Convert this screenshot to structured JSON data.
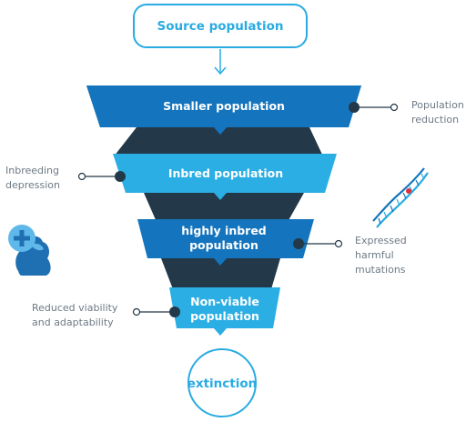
{
  "source_label": "Source population",
  "stages": [
    {
      "label": "Smaller population"
    },
    {
      "label": "Inbred population"
    },
    {
      "label_line1": "highly inbred",
      "label_line2": "population"
    },
    {
      "label_line1": "Non-viable",
      "label_line2": "population"
    }
  ],
  "extinction_label": "extinction",
  "annotations": {
    "population_reduction": {
      "line1": "Population",
      "line2": "reduction"
    },
    "inbreeding_depression": {
      "line1": "Inbreeding",
      "line2": "depression"
    },
    "expressed_harmful_mutations": {
      "line1": "Expressed",
      "line2": "harmful",
      "line3": "mutations"
    },
    "reduced_viability": {
      "line1": "Reduced viability",
      "line2": "and adaptability"
    }
  },
  "icons": [
    "dna-icon",
    "sick-dog-icon"
  ],
  "colors": {
    "dark_blue": "#1474bd",
    "light_blue": "#2aaee3",
    "connector_dark": "#233848",
    "outline": "#29abe2",
    "annotation_text": "#6d7a85"
  }
}
